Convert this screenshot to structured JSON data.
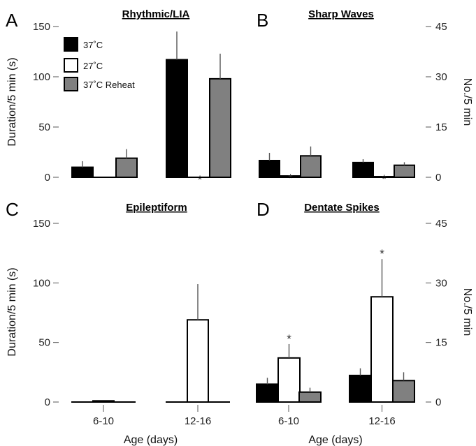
{
  "chart_data": [
    {
      "panel": "A",
      "title": "Rhythmic/LIA",
      "type": "bar",
      "categories": [
        "6-10",
        "12-16"
      ],
      "series": [
        {
          "name": "37˚C",
          "values": [
            10,
            117
          ],
          "errors": [
            6,
            28
          ],
          "significant": [
            false,
            false
          ]
        },
        {
          "name": "27˚C",
          "values": [
            0,
            0
          ],
          "errors": [
            0,
            0
          ],
          "significant": [
            false,
            true
          ]
        },
        {
          "name": "37˚C Reheat",
          "values": [
            19,
            98
          ],
          "errors": [
            9,
            25
          ],
          "significant": [
            false,
            false
          ]
        }
      ],
      "ylabel": "Duration/5 min (s)",
      "ylim": [
        0,
        150
      ],
      "yticks": [
        "0",
        "50",
        "100",
        "150"
      ],
      "legend": "top-left"
    },
    {
      "panel": "B",
      "title": "Sharp Waves",
      "type": "bar",
      "categories": [
        "6-10",
        "12-16"
      ],
      "series": [
        {
          "name": "37˚C",
          "values": [
            5,
            4.4
          ],
          "errors": [
            2.3,
            1
          ],
          "significant": [
            false,
            false
          ]
        },
        {
          "name": "27˚C",
          "values": [
            0.4,
            0.2
          ],
          "errors": [
            0,
            0
          ],
          "significant": [
            true,
            true
          ]
        },
        {
          "name": "37˚C Reheat",
          "values": [
            6.4,
            3.6
          ],
          "errors": [
            2.8,
            0.9
          ],
          "significant": [
            false,
            false
          ]
        }
      ],
      "ylabel": "No./5 min",
      "ylim": [
        0,
        45
      ],
      "yticks": [
        "0",
        "15",
        "30",
        "45"
      ]
    },
    {
      "panel": "C",
      "title": "Epileptiform",
      "type": "bar",
      "categories": [
        "6-10",
        "12-16"
      ],
      "series": [
        {
          "name": "37˚C",
          "values": [
            0,
            0
          ],
          "errors": [
            0,
            0
          ],
          "significant": [
            false,
            false
          ]
        },
        {
          "name": "27˚C",
          "values": [
            1,
            69
          ],
          "errors": [
            0,
            30
          ],
          "significant": [
            false,
            false
          ]
        },
        {
          "name": "37˚C Reheat",
          "values": [
            0,
            0
          ],
          "errors": [
            0,
            0
          ],
          "significant": [
            false,
            false
          ]
        }
      ],
      "ylabel": "Duration/5 min (s)",
      "xlabel": "Age (days)",
      "ylim": [
        0,
        150
      ],
      "yticks": [
        "0",
        "50",
        "100",
        "150"
      ]
    },
    {
      "panel": "D",
      "title": "Dentate Spikes",
      "type": "bar",
      "categories": [
        "6-10",
        "12-16"
      ],
      "series": [
        {
          "name": "37˚C",
          "values": [
            4.5,
            6.7
          ],
          "errors": [
            1.6,
            1.8
          ],
          "significant": [
            false,
            false
          ]
        },
        {
          "name": "27˚C",
          "values": [
            11.1,
            26.5
          ],
          "errors": [
            3.5,
            9.5
          ],
          "significant": [
            true,
            true
          ]
        },
        {
          "name": "37˚C Reheat",
          "values": [
            2.5,
            5.4
          ],
          "errors": [
            1.1,
            2.1
          ],
          "significant": [
            false,
            false
          ]
        }
      ],
      "ylabel": "No./5 min",
      "xlabel": "Age (days)",
      "ylim": [
        0,
        45
      ],
      "yticks": [
        "0",
        "15",
        "30",
        "45"
      ]
    }
  ],
  "legend_fills": [
    "#000000",
    "#ffffff",
    "#808080"
  ],
  "marker": "*"
}
